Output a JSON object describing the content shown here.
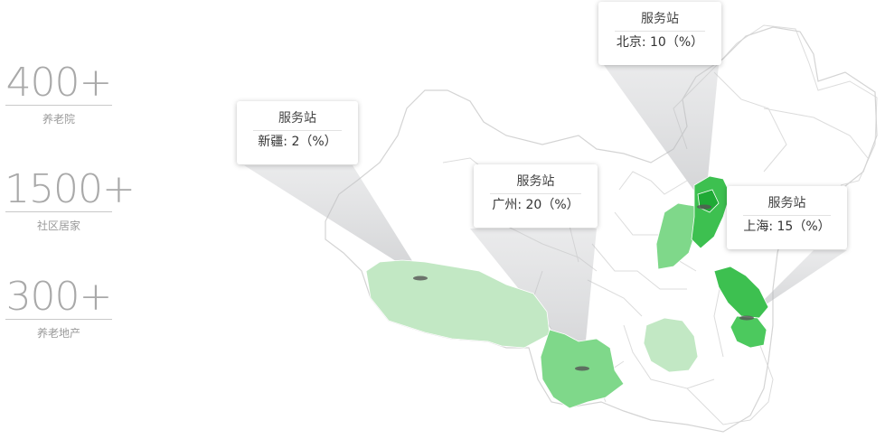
{
  "stats": [
    {
      "value": "400+",
      "label": "养老院"
    },
    {
      "value": "1500+",
      "label": "社区居家"
    },
    {
      "value": "300+",
      "label": "养老地产"
    }
  ],
  "tooltips": [
    {
      "title": "服务站",
      "city": "新疆",
      "value": "2（%）"
    },
    {
      "title": "服务站",
      "city": "广州",
      "value": "20（%）"
    },
    {
      "title": "服务站",
      "city": "北京",
      "value": "10（%）"
    },
    {
      "title": "服务站",
      "city": "上海",
      "value": "15（%）"
    }
  ],
  "colors": {
    "light": "#c2e8c4",
    "medium": "#7fd88a",
    "dark": "#3dc050",
    "darkest": "#1faa35",
    "border": "#d6d6d6",
    "stat_text": "#a9a9a9"
  }
}
